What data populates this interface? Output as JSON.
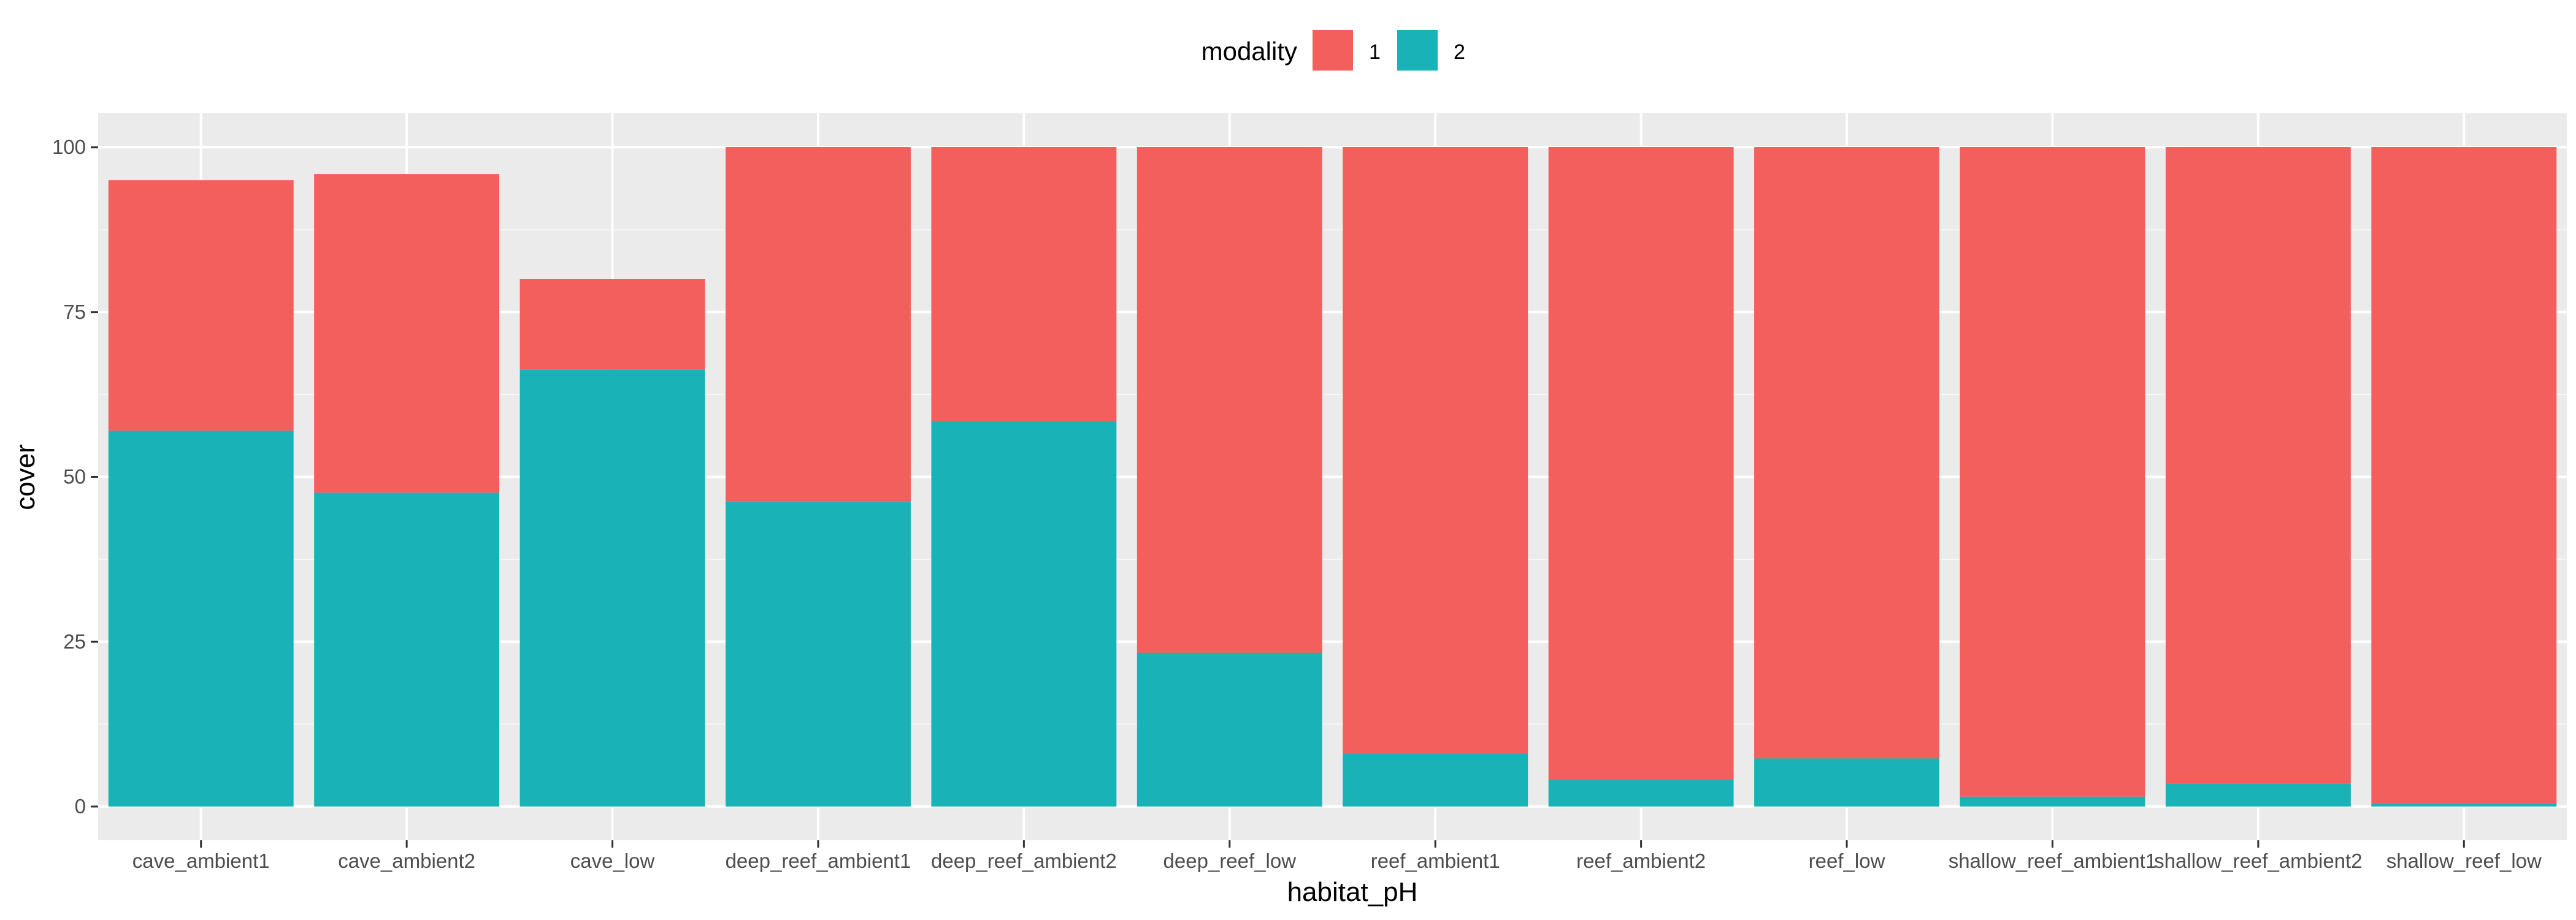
{
  "chart_data": {
    "type": "bar",
    "stacked": true,
    "xlabel": "habitat_pH",
    "ylabel": "cover",
    "ylim": [
      0,
      100
    ],
    "yticks": [
      0,
      25,
      50,
      75,
      100
    ],
    "grid": true,
    "legend": {
      "title": "modality",
      "position": "top",
      "entries": [
        "1",
        "2"
      ]
    },
    "categories": [
      "cave_ambient1",
      "cave_ambient2",
      "cave_low",
      "deep_reef_ambient1",
      "deep_reef_ambient2",
      "deep_reef_low",
      "reef_ambient1",
      "reef_ambient2",
      "reef_low",
      "shallow_reef_ambient1",
      "shallow_reef_ambient2",
      "shallow_reef_low"
    ],
    "series": [
      {
        "name": "2",
        "color": "#19b2b6",
        "values": [
          57,
          47.6,
          66.3,
          46.3,
          58.5,
          23.3,
          8,
          4,
          7.3,
          1.5,
          3.5,
          0.5
        ]
      },
      {
        "name": "1",
        "color": "#f25f5c",
        "values": [
          38,
          48.3,
          13.7,
          53.7,
          41.5,
          76.7,
          92,
          96,
          92.7,
          98.5,
          96.5,
          99.5
        ]
      }
    ]
  }
}
